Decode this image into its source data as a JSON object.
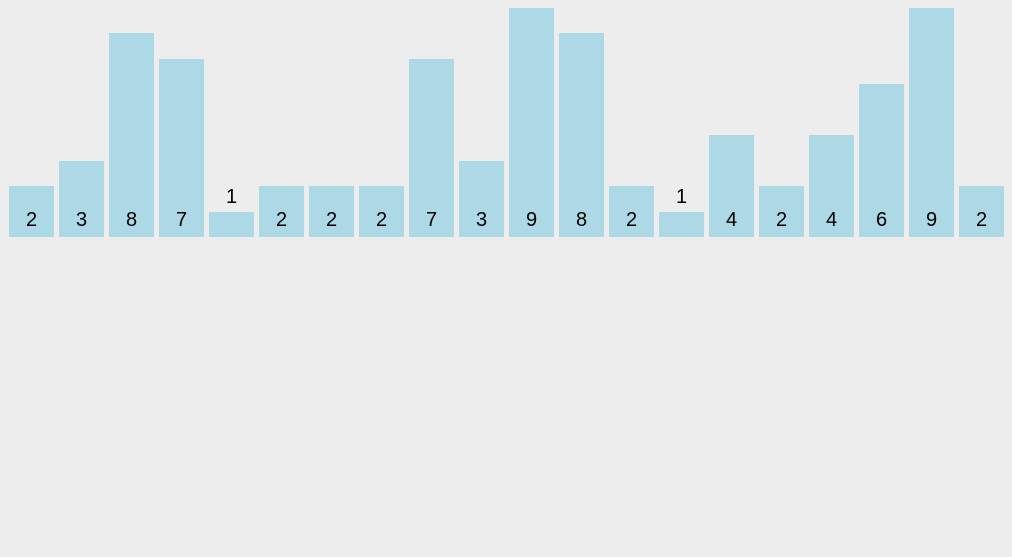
{
  "page": {
    "background_color": "#EDEDED"
  },
  "chart_data": {
    "type": "bar",
    "orientation": "vertical",
    "values": [
      2,
      3,
      8,
      7,
      1,
      2,
      2,
      2,
      7,
      3,
      9,
      8,
      2,
      1,
      4,
      2,
      4,
      6,
      9,
      2
    ],
    "bar_labels": [
      "2",
      "3",
      "8",
      "7",
      "1",
      "2",
      "2",
      "2",
      "7",
      "3",
      "9",
      "8",
      "2",
      "1",
      "4",
      "2",
      "4",
      "6",
      "9",
      "2"
    ],
    "title": "",
    "xlabel": "",
    "ylabel": "",
    "ylim": [
      0,
      9
    ],
    "grid": false,
    "legend": false,
    "axes_shown": false,
    "label_position": "inside bar at bottom; above bar when value is 1",
    "bar_color": "#ADD8E6",
    "label_color": "#000000"
  }
}
